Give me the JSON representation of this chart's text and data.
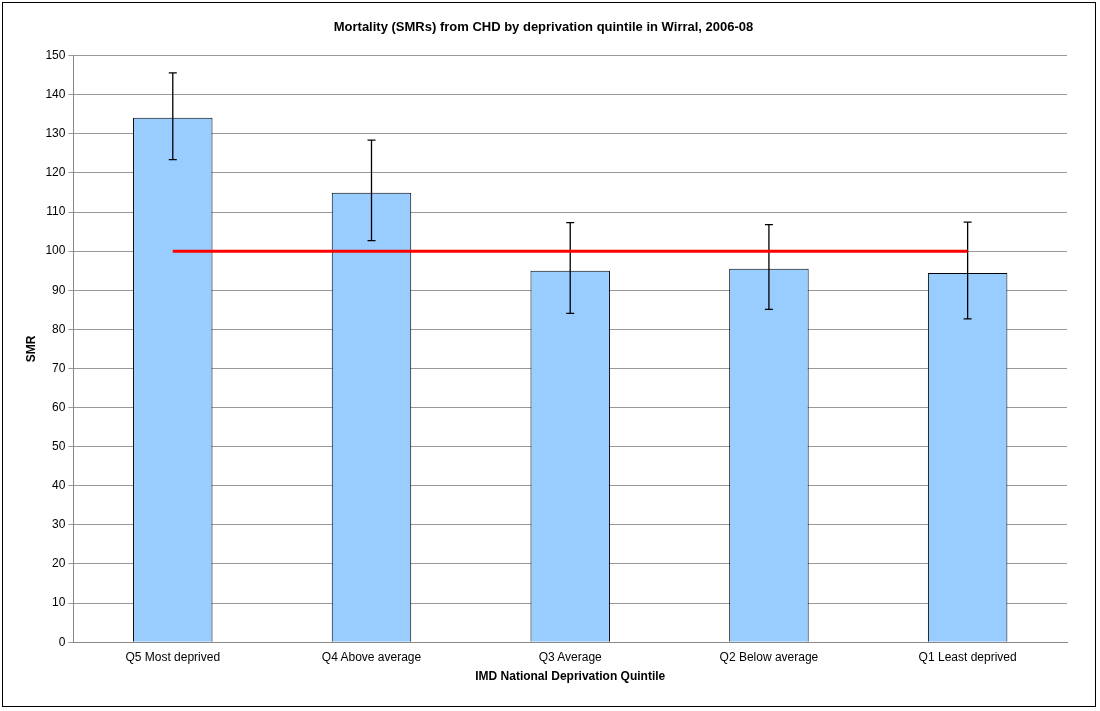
{
  "chart_data": {
    "type": "bar",
    "title": "Mortality (SMRs) from CHD by deprivation quintile in Wirral, 2006-08",
    "xlabel": "IMD National Deprivation Quintile",
    "ylabel": "SMR",
    "categories": [
      "Q5 Most deprived",
      "Q4 Above average",
      "Q3 Average",
      "Q2 Below average",
      "Q1 Least deprived"
    ],
    "values": [
      134.1,
      114.9,
      95.0,
      95.5,
      94.4
    ],
    "errors": [
      [
        123.4,
        145.6
      ],
      [
        102.7,
        128.4
      ],
      [
        84.1,
        107.3
      ],
      [
        85.1,
        106.8
      ],
      [
        82.7,
        107.4
      ]
    ],
    "color": "#99ccff",
    "ylim": [
      0,
      150
    ],
    "yticks": [
      0,
      10,
      20,
      30,
      40,
      50,
      60,
      70,
      80,
      90,
      100,
      110,
      120,
      130,
      140,
      150
    ],
    "ref_lines": [
      {
        "axis": "y",
        "value": 100,
        "color": "#ff0000",
        "line_style": "solid"
      }
    ],
    "grid": "y",
    "legend": false
  }
}
